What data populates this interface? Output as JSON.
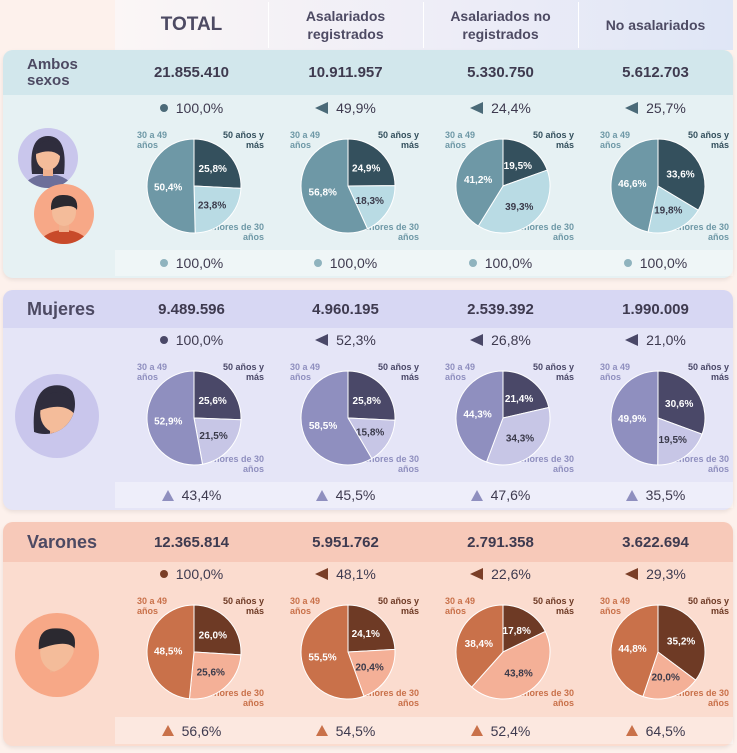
{
  "columns": [
    "TOTAL",
    "Asalariados registrados",
    "Asalariados no registrados",
    "No asalariados"
  ],
  "age_labels": {
    "mid": "30 a 49 años",
    "old": "50 años y más",
    "young": "menores de 30 años"
  },
  "rows": [
    {
      "label": "Ambos sexos",
      "theme": {
        "band": "#d2e7ec",
        "panel": "#e6f1f3",
        "text": "#3e4e5c",
        "mid": "#6e98a6",
        "old": "#34505d",
        "young": "#b9dbe4",
        "marker": "#4b6a78",
        "bottom_marker": "dot",
        "avatar_bg": "#c9c6ec"
      },
      "totals": [
        "21.855.410",
        "10.911.957",
        "5.330.750",
        "5.612.703"
      ],
      "shares": [
        "100,0%",
        "49,9%",
        "24,4%",
        "25,7%"
      ],
      "bottom": [
        "100,0%",
        "100,0%",
        "100,0%",
        "100,0%"
      ]
    },
    {
      "label": "Mujeres",
      "theme": {
        "band": "#d7d7f3",
        "panel": "#e5e5f7",
        "text": "#4d4a63",
        "mid": "#8f8fbf",
        "old": "#4a4868",
        "young": "#c7c6e6",
        "marker": "#4a4868",
        "bottom_marker": "tri",
        "avatar_bg": "#c9c6ec"
      },
      "totals": [
        "9.489.596",
        "4.960.195",
        "2.539.392",
        "1.990.009"
      ],
      "shares": [
        "100,0%",
        "52,3%",
        "26,8%",
        "21,0%"
      ],
      "bottom": [
        "43,4%",
        "45,5%",
        "47,6%",
        "35,5%"
      ]
    },
    {
      "label": "Varones",
      "theme": {
        "band": "#f7c9b9",
        "panel": "#fbdccf",
        "text": "#5a3a2d",
        "mid": "#c9714a",
        "old": "#6e3a25",
        "young": "#f4b097",
        "marker": "#7a3e27",
        "bottom_marker": "tri",
        "avatar_bg": "#f7a887"
      },
      "totals": [
        "12.365.814",
        "5.951.762",
        "2.791.358",
        "3.622.694"
      ],
      "shares": [
        "100,0%",
        "48,1%",
        "22,6%",
        "29,3%"
      ],
      "bottom": [
        "56,6%",
        "54,5%",
        "52,4%",
        "64,5%"
      ]
    }
  ],
  "chart_data": {
    "type": "pie",
    "slice_order": [
      "50 años y más",
      "menores de 30 años",
      "30 a 49 años"
    ],
    "groups": [
      {
        "sex": "Ambos sexos",
        "category": "TOTAL",
        "values": [
          25.8,
          23.8,
          50.4
        ],
        "labels": [
          "25,8%",
          "23,8%",
          "50,4%"
        ]
      },
      {
        "sex": "Ambos sexos",
        "category": "Asalariados registrados",
        "values": [
          24.9,
          18.3,
          56.8
        ],
        "labels": [
          "24,9%",
          "18,3%",
          "56,8%"
        ]
      },
      {
        "sex": "Ambos sexos",
        "category": "Asalariados no registrados",
        "values": [
          19.5,
          39.3,
          41.2
        ],
        "labels": [
          "19,5%",
          "39,3%",
          "41,2%"
        ]
      },
      {
        "sex": "Ambos sexos",
        "category": "No asalariados",
        "values": [
          33.6,
          19.8,
          46.6
        ],
        "labels": [
          "33,6%",
          "19,8%",
          "46,6%"
        ]
      },
      {
        "sex": "Mujeres",
        "category": "TOTAL",
        "values": [
          25.6,
          21.5,
          52.9
        ],
        "labels": [
          "25,6%",
          "21,5%",
          "52,9%"
        ]
      },
      {
        "sex": "Mujeres",
        "category": "Asalariados registrados",
        "values": [
          25.8,
          15.8,
          58.5
        ],
        "labels": [
          "25,8%",
          "15,8%",
          "58,5%"
        ]
      },
      {
        "sex": "Mujeres",
        "category": "Asalariados no registrados",
        "values": [
          21.4,
          34.3,
          44.3
        ],
        "labels": [
          "21,4%",
          "34,3%",
          "44,3%"
        ]
      },
      {
        "sex": "Mujeres",
        "category": "No asalariados",
        "values": [
          30.6,
          19.5,
          49.9
        ],
        "labels": [
          "30,6%",
          "19,5%",
          "49,9%"
        ]
      },
      {
        "sex": "Varones",
        "category": "TOTAL",
        "values": [
          26.0,
          25.6,
          48.5
        ],
        "labels": [
          "26,0%",
          "25,6%",
          "48,5%"
        ]
      },
      {
        "sex": "Varones",
        "category": "Asalariados registrados",
        "values": [
          24.1,
          20.4,
          55.5
        ],
        "labels": [
          "24,1%",
          "20,4%",
          "55,5%"
        ]
      },
      {
        "sex": "Varones",
        "category": "Asalariados no registrados",
        "values": [
          17.8,
          43.8,
          38.4
        ],
        "labels": [
          "17,8%",
          "43,8%",
          "38,4%"
        ]
      },
      {
        "sex": "Varones",
        "category": "No asalariados",
        "values": [
          35.2,
          20.0,
          44.8
        ],
        "labels": [
          "35,2%",
          "20,0%",
          "44,8%"
        ]
      }
    ]
  }
}
